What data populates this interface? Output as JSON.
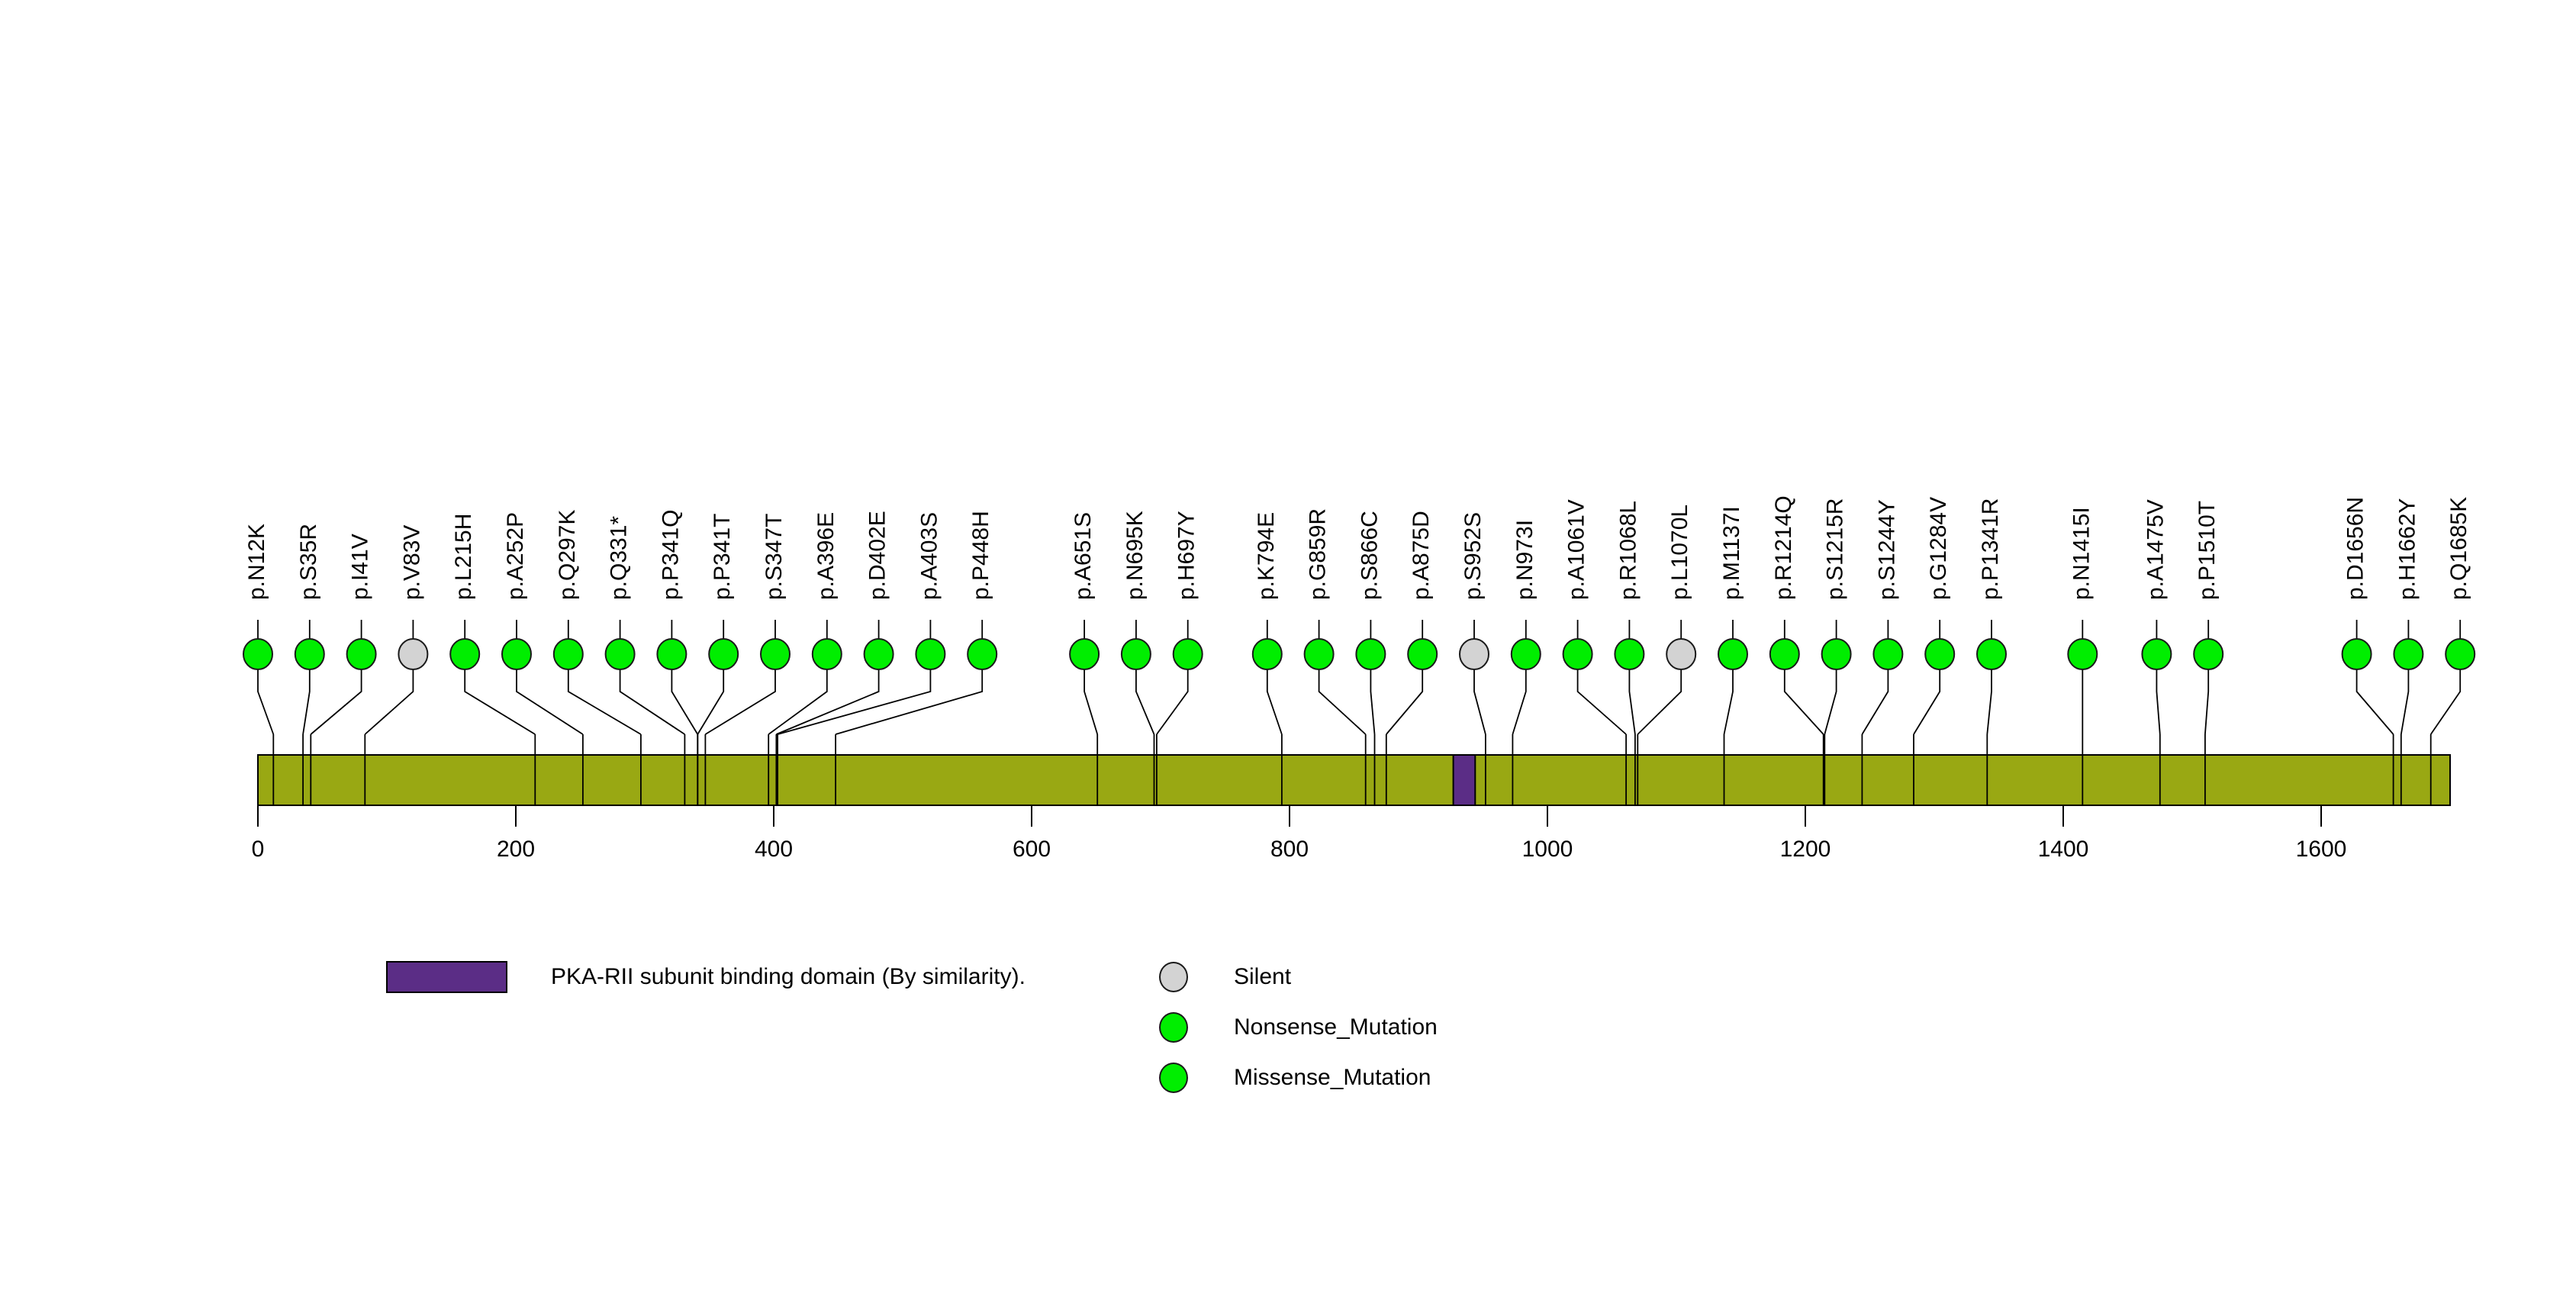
{
  "chart_data": {
    "type": "lollipop",
    "title": "",
    "xlabel": "",
    "axis": {
      "min": 0,
      "max": 1700,
      "ticks": [
        0,
        200,
        400,
        600,
        800,
        1000,
        1200,
        1400,
        1600
      ]
    },
    "protein_length": 1700,
    "backbone_color": "#99A813",
    "domains": [
      {
        "label": "PKA-RII subunit binding domain (By similarity).",
        "start": 927,
        "end": 944,
        "color": "#5B2D86"
      }
    ],
    "mutation_type_colors": {
      "Silent": "#D3D3D3",
      "Nonsense_Mutation": "#00EE00",
      "Missense_Mutation": "#00EE00"
    },
    "mutations": [
      {
        "label": "p.N12K",
        "pos": 12,
        "type": "Missense_Mutation"
      },
      {
        "label": "p.S35R",
        "pos": 35,
        "type": "Missense_Mutation"
      },
      {
        "label": "p.I41V",
        "pos": 41,
        "type": "Missense_Mutation"
      },
      {
        "label": "p.V83V",
        "pos": 83,
        "type": "Silent"
      },
      {
        "label": "p.L215H",
        "pos": 215,
        "type": "Missense_Mutation"
      },
      {
        "label": "p.A252P",
        "pos": 252,
        "type": "Missense_Mutation"
      },
      {
        "label": "p.Q297K",
        "pos": 297,
        "type": "Missense_Mutation"
      },
      {
        "label": "p.Q331*",
        "pos": 331,
        "type": "Nonsense_Mutation"
      },
      {
        "label": "p.P341Q",
        "pos": 341,
        "type": "Missense_Mutation"
      },
      {
        "label": "p.P341T",
        "pos": 341,
        "type": "Missense_Mutation"
      },
      {
        "label": "p.S347T",
        "pos": 347,
        "type": "Missense_Mutation"
      },
      {
        "label": "p.A396E",
        "pos": 396,
        "type": "Missense_Mutation"
      },
      {
        "label": "p.D402E",
        "pos": 402,
        "type": "Missense_Mutation"
      },
      {
        "label": "p.A403S",
        "pos": 403,
        "type": "Missense_Mutation"
      },
      {
        "label": "p.P448H",
        "pos": 448,
        "type": "Missense_Mutation"
      },
      {
        "label": "p.A651S",
        "pos": 651,
        "type": "Missense_Mutation"
      },
      {
        "label": "p.N695K",
        "pos": 695,
        "type": "Missense_Mutation"
      },
      {
        "label": "p.H697Y",
        "pos": 697,
        "type": "Missense_Mutation"
      },
      {
        "label": "p.K794E",
        "pos": 794,
        "type": "Missense_Mutation"
      },
      {
        "label": "p.G859R",
        "pos": 859,
        "type": "Missense_Mutation"
      },
      {
        "label": "p.S866C",
        "pos": 866,
        "type": "Missense_Mutation"
      },
      {
        "label": "p.A875D",
        "pos": 875,
        "type": "Missense_Mutation"
      },
      {
        "label": "p.S952S",
        "pos": 952,
        "type": "Silent"
      },
      {
        "label": "p.N973I",
        "pos": 973,
        "type": "Missense_Mutation"
      },
      {
        "label": "p.A1061V",
        "pos": 1061,
        "type": "Missense_Mutation"
      },
      {
        "label": "p.R1068L",
        "pos": 1068,
        "type": "Missense_Mutation"
      },
      {
        "label": "p.L1070L",
        "pos": 1070,
        "type": "Silent"
      },
      {
        "label": "p.M1137I",
        "pos": 1137,
        "type": "Missense_Mutation"
      },
      {
        "label": "p.R1214Q",
        "pos": 1214,
        "type": "Missense_Mutation"
      },
      {
        "label": "p.S1215R",
        "pos": 1215,
        "type": "Missense_Mutation"
      },
      {
        "label": "p.S1244Y",
        "pos": 1244,
        "type": "Missense_Mutation"
      },
      {
        "label": "p.G1284V",
        "pos": 1284,
        "type": "Missense_Mutation"
      },
      {
        "label": "p.P1341R",
        "pos": 1341,
        "type": "Missense_Mutation"
      },
      {
        "label": "p.N1415I",
        "pos": 1415,
        "type": "Missense_Mutation"
      },
      {
        "label": "p.A1475V",
        "pos": 1475,
        "type": "Missense_Mutation"
      },
      {
        "label": "p.P1510T",
        "pos": 1510,
        "type": "Missense_Mutation"
      },
      {
        "label": "p.D1656N",
        "pos": 1656,
        "type": "Missense_Mutation"
      },
      {
        "label": "p.H1662Y",
        "pos": 1662,
        "type": "Missense_Mutation"
      },
      {
        "label": "p.Q1685K",
        "pos": 1685,
        "type": "Missense_Mutation"
      }
    ]
  },
  "legend": {
    "domain_label": "PKA-RII subunit binding domain (By similarity).",
    "types": [
      {
        "label": "Silent",
        "color": "#D3D3D3"
      },
      {
        "label": "Nonsense_Mutation",
        "color": "#00EE00"
      },
      {
        "label": "Missense_Mutation",
        "color": "#00EE00"
      }
    ]
  }
}
